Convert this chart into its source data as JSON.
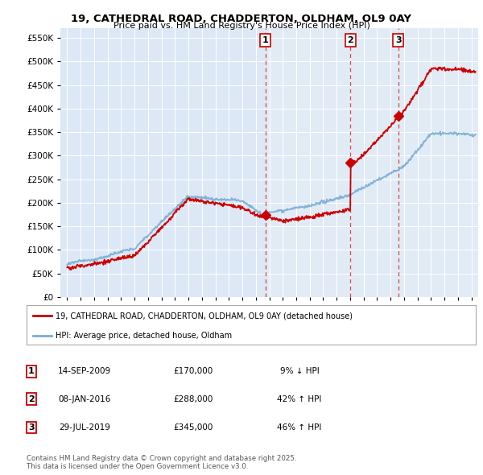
{
  "title": "19, CATHEDRAL ROAD, CHADDERTON, OLDHAM, OL9 0AY",
  "subtitle": "Price paid vs. HM Land Registry's House Price Index (HPI)",
  "plot_bg_color": "#dce8f5",
  "red_color": "#cc0000",
  "blue_color": "#7aadd4",
  "purchases": [
    {
      "date_num": 2009.71,
      "price": 170000,
      "label": "1",
      "date_str": "14-SEP-2009",
      "pct": "9%",
      "dir": "↓"
    },
    {
      "date_num": 2016.03,
      "price": 288000,
      "label": "2",
      "date_str": "08-JAN-2016",
      "pct": "42%",
      "dir": "↑"
    },
    {
      "date_num": 2019.57,
      "price": 345000,
      "label": "3",
      "date_str": "29-JUL-2019",
      "pct": "46%",
      "dir": "↑"
    }
  ],
  "ylabel_ticks": [
    0,
    50000,
    100000,
    150000,
    200000,
    250000,
    300000,
    350000,
    400000,
    450000,
    500000,
    550000
  ],
  "ylim": [
    0,
    570000
  ],
  "xlim_start": 1994.5,
  "xlim_end": 2025.5,
  "legend_label_red": "19, CATHEDRAL ROAD, CHADDERTON, OLDHAM, OL9 0AY (detached house)",
  "legend_label_blue": "HPI: Average price, detached house, Oldham",
  "footer": "Contains HM Land Registry data © Crown copyright and database right 2025.\nThis data is licensed under the Open Government Licence v3.0."
}
